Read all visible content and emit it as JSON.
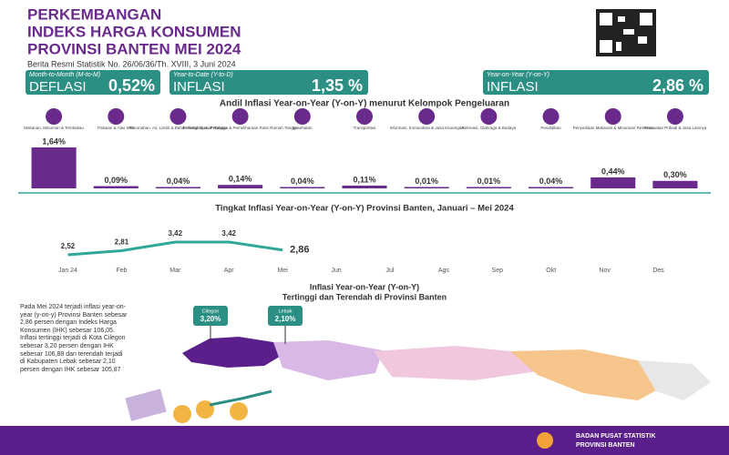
{
  "header": {
    "title_lines": [
      "PERKEMBANGAN",
      "INDEKS HARGA KONSUMEN",
      "PROVINSI BANTEN MEI 2024"
    ],
    "subtitle": "Berita Resmi Statistik No. 26/06/36/Th. XVIII, 3 Juni 2024"
  },
  "cards": [
    {
      "period": "Month-to-Month (M-to-M)",
      "kind": "DEFLASI",
      "value": "0,52%"
    },
    {
      "period": "Year-to-Date (Y-to-D)",
      "kind": "INFLASI",
      "value": "1,35 %"
    },
    {
      "period": "Year-on-Year (Y-on-Y)",
      "kind": "INFLASI",
      "value": "2,86 %"
    }
  ],
  "chart_data": [
    {
      "type": "bar",
      "title": "Andil Inflasi Year-on-Year (Y-on-Y) menurut Kelompok Pengeluaran",
      "color": "#6a2a8c",
      "categories": [
        "Makanan, Minuman & Tembakau",
        "Pakaian & Alas Kaki",
        "Perumahan, Air, Listrik & Bahan Bakar Rumah Tangga",
        "Perlengkapan, Peralatan & Pemeliharaan Rutin Rumah Tangga",
        "Kesehatan",
        "Transportasi",
        "Informasi, Komunikasi & Jasa Keuangan",
        "Rekreasi, Olahraga & Budaya",
        "Pendidikan",
        "Penyediaan Makanan & Minuman/ Restoran",
        "Perawatan Pribadi & Jasa Lainnya"
      ],
      "values": [
        1.64,
        0.09,
        0.04,
        0.14,
        0.04,
        0.11,
        0.01,
        0.01,
        0.04,
        0.44,
        0.3
      ],
      "value_labels": [
        "1,64%",
        "0,09%",
        "0,04%",
        "0,14%",
        "0,04%",
        "0,11%",
        "0,01%",
        "0,01%",
        "0,04%",
        "0,44%",
        "0,30%"
      ]
    },
    {
      "type": "line",
      "title": "Tingkat Inflasi Year-on-Year (Y-on-Y) Provinsi Banten, Januari – Mei  2024",
      "color": "#2fa89a",
      "categories": [
        "Jan 24",
        "Feb",
        "Mar",
        "Apr",
        "Mei",
        "Jun",
        "Jul",
        "Ags",
        "Sep",
        "Okt",
        "Nov",
        "Des"
      ],
      "values": [
        2.52,
        2.81,
        3.42,
        3.42,
        2.86,
        null,
        null,
        null,
        null,
        null,
        null,
        null
      ],
      "value_labels": [
        "2,52",
        "2,81",
        "3,42",
        "3,42",
        "2,86",
        null,
        null,
        null,
        null,
        null,
        null,
        null
      ]
    }
  ],
  "map": {
    "title": "Inflasi Year-on-Year (Y-on-Y)",
    "subtitle": "Tertinggi dan Terendah di Provinsi Banten",
    "callouts": [
      {
        "name": "Cilegon",
        "value": "3,20%"
      },
      {
        "name": "Lebak",
        "value": "2,10%"
      }
    ],
    "text": "Pada Mei 2024 terjadi inflasi year-on-year (y-on-y) Provinsi Banten sebesar 2,86 persen dengan Indeks Harga Konsumen (IHK) sebesar 106,05. Inflasi tertinggi terjadi di Kota Cilegon sebesar 3,20 persen dengan IHK sebesar 106,88 dan terendah terjadi di Kabupaten Lebak sebesar 2,10 persen dengan IHK sebesar 105,87"
  },
  "footer": {
    "lines": [
      "BADAN PUSAT STATISTIK",
      "PROVINSI BANTEN"
    ]
  }
}
